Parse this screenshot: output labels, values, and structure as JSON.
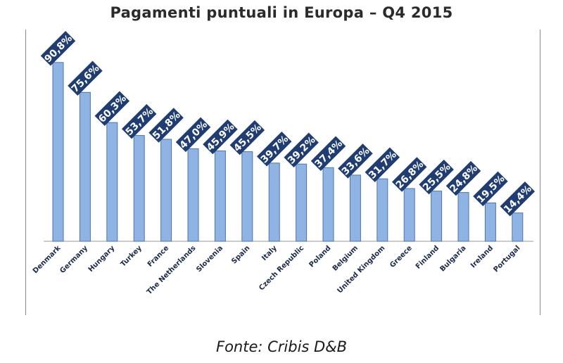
{
  "title": "Pagamenti puntuali in Europa – Q4 2015",
  "source": "Fonte: Cribis D&B",
  "colors": {
    "bar": "#8fb3e3",
    "bar_edge": "#4a74b0",
    "label_bg": "#1f3d72"
  },
  "chart_data": {
    "type": "bar",
    "title": "Pagamenti puntuali in Europa – Q4 2015",
    "xlabel": "",
    "ylabel": "",
    "ylim": [
      0,
      100
    ],
    "grid": false,
    "categories": [
      "Denmark",
      "Germany",
      "Hungary",
      "Turkey",
      "France",
      "The Netherlands",
      "Slovenia",
      "Spain",
      "Italy",
      "Czech Republic",
      "Poland",
      "Belgium",
      "United Kingdom",
      "Greece",
      "Finland",
      "Bulgaria",
      "Ireland",
      "Portugal"
    ],
    "values": [
      90.8,
      75.6,
      60.3,
      53.7,
      51.8,
      47.0,
      45.9,
      45.5,
      39.7,
      39.2,
      37.4,
      33.6,
      31.7,
      26.8,
      25.5,
      24.8,
      19.5,
      14.4
    ],
    "data_labels": [
      "90,8%",
      "75,6%",
      "60,3%",
      "53,7%",
      "51,8%",
      "47,0%",
      "45,9%",
      "45,5%",
      "39,7%",
      "39,2%",
      "37,4%",
      "33,6%",
      "31,7%",
      "26,8%",
      "25,5%",
      "24,8%",
      "19,5%",
      "14,4%"
    ]
  }
}
